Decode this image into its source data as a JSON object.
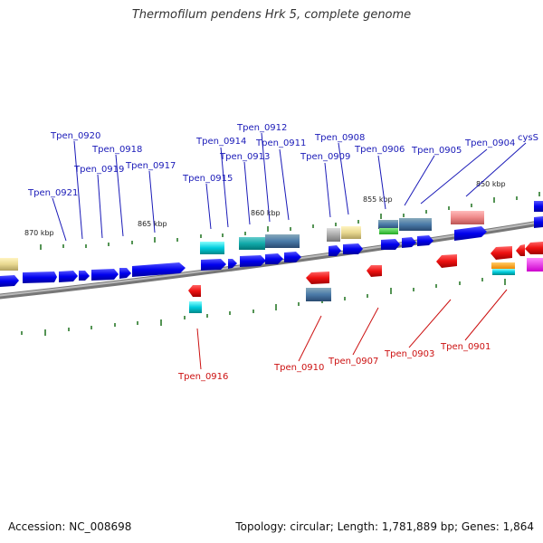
{
  "title": "Thermofilum pendens Hrk 5, complete genome",
  "footer": {
    "accession": "Accession: NC_008698",
    "summary": "Topology: circular; Length: 1,781,889 bp; Genes: 1,864"
  },
  "colors": {
    "forward_label": "#1a1ab8",
    "reverse_label": "#cc1111",
    "forward_gene": "#0000ee",
    "reverse_gene": "#ee1111",
    "backbone": "#888888",
    "tick": "#2a7a2a"
  },
  "scale_labels": [
    "870 kbp",
    "865 kbp",
    "860 kbp",
    "855 kbp",
    "850 kbp"
  ],
  "forward_labels": [
    "Tpen_0921",
    "Tpen_0920",
    "Tpen_0919",
    "Tpen_0918",
    "Tpen_0917",
    "Tpen_0915",
    "Tpen_0914",
    "Tpen_0913",
    "Tpen_0912",
    "Tpen_0911",
    "Tpen_0909",
    "Tpen_0908",
    "Tpen_0906",
    "Tpen_0905",
    "Tpen_0904",
    "cysS"
  ],
  "reverse_labels": [
    "Tpen_0916",
    "Tpen_0910",
    "Tpen_0907",
    "Tpen_0903",
    "Tpen_0901"
  ]
}
